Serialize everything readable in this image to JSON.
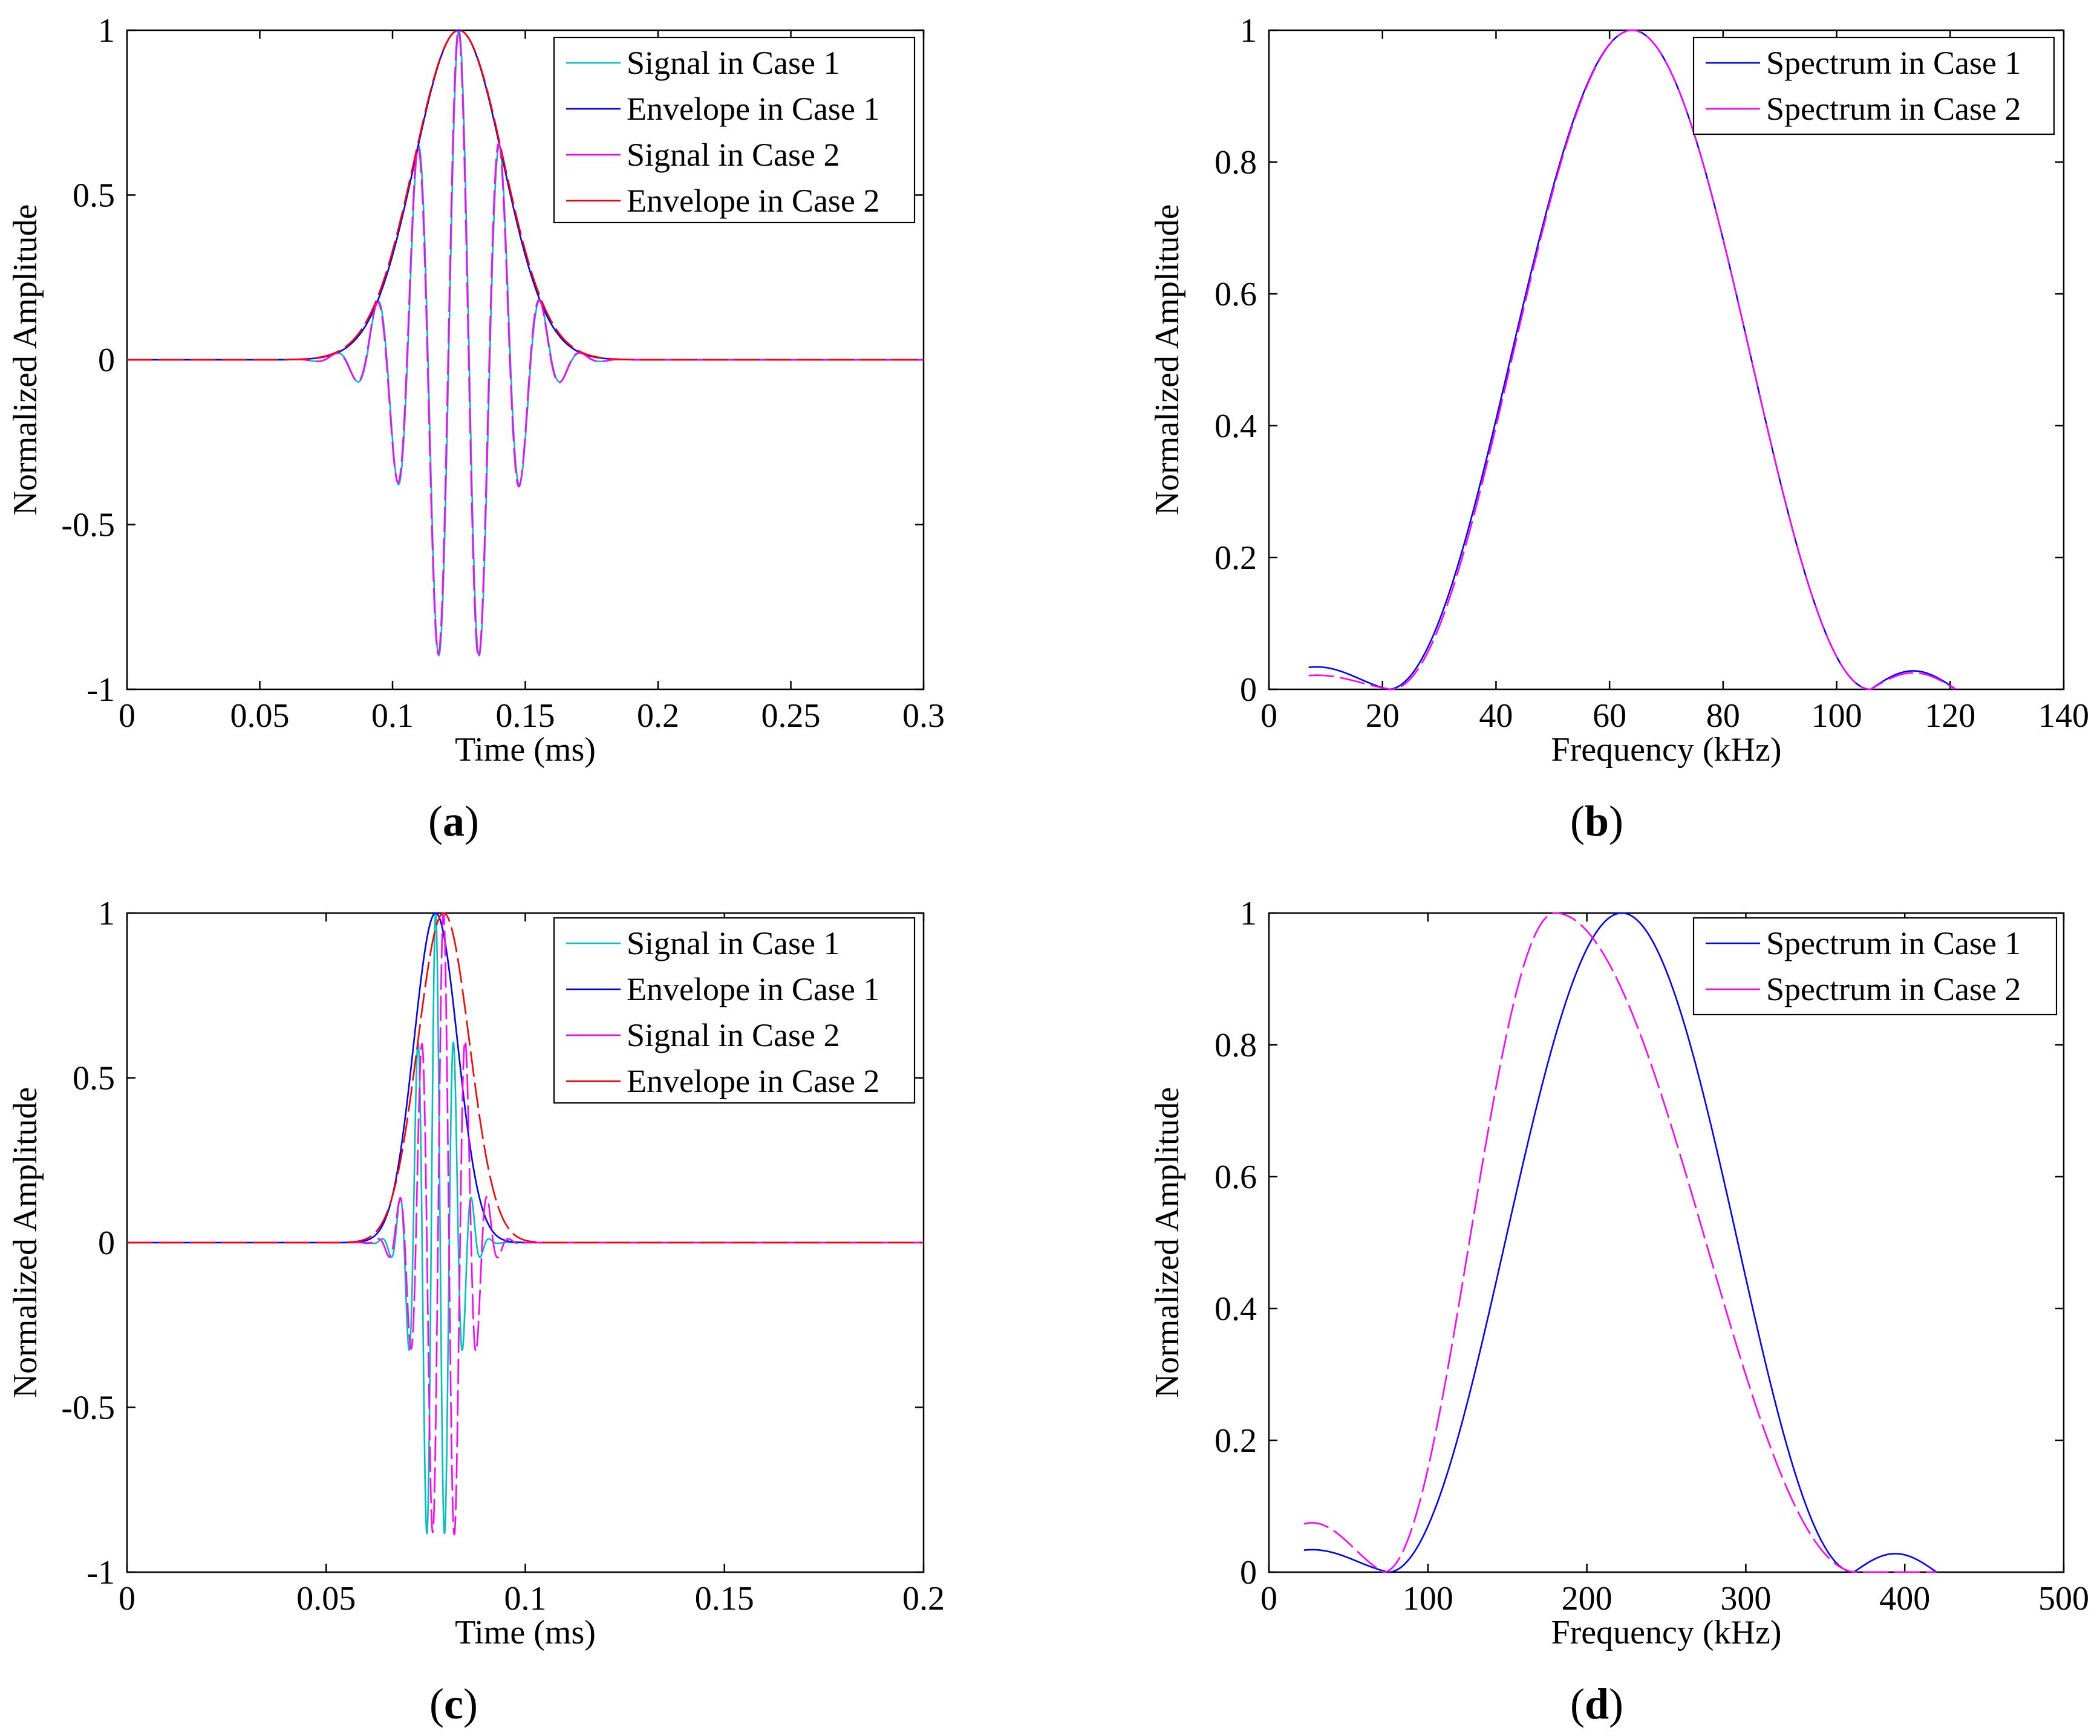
{
  "chart_data": [
    {
      "id": "a",
      "type": "line",
      "caption_letter": "a",
      "xlabel": "Time (ms)",
      "ylabel": "Normalized Amplitude",
      "xlim": [
        0,
        0.3
      ],
      "ylim": [
        -1,
        1
      ],
      "xticks": [
        "0",
        "0.05",
        "0.1",
        "0.15",
        "0.2",
        "0.25",
        "0.3"
      ],
      "yticks": [
        "-1",
        "-0.5",
        "0",
        "0.5",
        "1"
      ],
      "legend_position": "top-right",
      "series": [
        {
          "name": "Signal in Case 1",
          "color": "#00c0c0",
          "model": "burst",
          "params": {
            "t0": 0.125,
            "sigma": 0.0165,
            "freq": 64.5,
            "phase": 0,
            "amp": 1
          }
        },
        {
          "name": "Envelope in Case 1",
          "color": "#0000ff",
          "model": "envelope",
          "params": {
            "t0": 0.125,
            "sigma": 0.0165,
            "amp": 1
          }
        },
        {
          "name": "Signal in Case 2",
          "color": "#ff00ff",
          "model": "burst",
          "params": {
            "t0": 0.125,
            "sigma": 0.0165,
            "freq": 64.5,
            "phase": 0.08,
            "amp": 1
          }
        },
        {
          "name": "Envelope in Case 2",
          "color": "#ff0000",
          "model": "envelope",
          "params": {
            "t0": 0.125,
            "sigma": 0.0168,
            "amp": 1
          }
        }
      ]
    },
    {
      "id": "b",
      "type": "line",
      "caption_letter": "b",
      "xlabel": "Frequency (kHz)",
      "ylabel": "Normalized Amplitude",
      "xlim": [
        0,
        140
      ],
      "ylim": [
        0,
        1
      ],
      "xticks": [
        "0",
        "20",
        "40",
        "60",
        "80",
        "100",
        "120",
        "140"
      ],
      "yticks": [
        "0",
        "0.2",
        "0.4",
        "0.6",
        "0.8",
        "1"
      ],
      "legend_position": "top-right",
      "series": [
        {
          "name": "Spectrum in Case 1",
          "color": "#0000ff",
          "model": "spectrum",
          "params": {
            "f0": 64,
            "null1": 21,
            "null2": 106,
            "fmin": 7,
            "fmax": 121,
            "side1": 0.035,
            "side2": 0.028
          }
        },
        {
          "name": "Spectrum in Case 2",
          "color": "#ff00ff",
          "model": "spectrum",
          "params": {
            "f0": 64,
            "null1": 21.5,
            "null2": 106,
            "fmin": 7,
            "fmax": 121,
            "side1": 0.022,
            "side2": 0.025
          }
        }
      ]
    },
    {
      "id": "c",
      "type": "line",
      "caption_letter": "c",
      "xlabel": "Time (ms)",
      "ylabel": "Normalized Amplitude",
      "xlim": [
        0,
        0.2
      ],
      "ylim": [
        -1,
        1
      ],
      "xticks": [
        "0",
        "0.05",
        "0.1",
        "0.15",
        "0.2"
      ],
      "yticks": [
        "-1",
        "-0.5",
        "0",
        "0.5",
        "1"
      ],
      "legend_position": "top-right",
      "series": [
        {
          "name": "Signal in Case 1",
          "color": "#00c0c0",
          "model": "burst",
          "params": {
            "t0": 0.0775,
            "sigma": 0.0045,
            "freq": 220,
            "phase": 0,
            "amp": 1
          }
        },
        {
          "name": "Envelope in Case 1",
          "color": "#0000ff",
          "model": "envelope",
          "params": {
            "t0": 0.0775,
            "sigma": 0.0055,
            "amp": 1
          }
        },
        {
          "name": "Signal in Case 2",
          "color": "#ff00ff",
          "model": "burst",
          "params": {
            "t0": 0.0795,
            "sigma": 0.0055,
            "freq": 180,
            "phase": 0.05,
            "amp": 1
          }
        },
        {
          "name": "Envelope in Case 2",
          "color": "#ff0000",
          "model": "envelope",
          "params": {
            "t0": 0.0795,
            "sigma": 0.0065,
            "amp": 1
          }
        }
      ]
    },
    {
      "id": "d",
      "type": "line",
      "caption_letter": "d",
      "xlabel": "Frequency (kHz)",
      "ylabel": "Normalized Amplitude",
      "xlim": [
        0,
        500
      ],
      "ylim": [
        0,
        1
      ],
      "xticks": [
        "0",
        "100",
        "200",
        "300",
        "400",
        "500"
      ],
      "yticks": [
        "0",
        "0.2",
        "0.4",
        "0.6",
        "0.8",
        "1"
      ],
      "legend_position": "top-right",
      "series": [
        {
          "name": "Spectrum in Case 1",
          "color": "#0000ff",
          "model": "spectrum",
          "params": {
            "f0": 222,
            "null1": 75,
            "null2": 368,
            "fmin": 22,
            "fmax": 420,
            "side1": 0.035,
            "side2": 0.028
          }
        },
        {
          "name": "Spectrum in Case 2",
          "color": "#ff00ff",
          "model": "spectrum",
          "params": {
            "f0": 180,
            "null1": 72,
            "null2": 370,
            "fmin": 22,
            "fmax": 420,
            "side1": 0.077,
            "side2": 0.0
          }
        }
      ]
    }
  ]
}
